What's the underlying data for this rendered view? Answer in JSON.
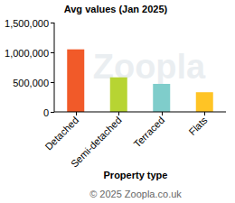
{
  "chart_data": {
    "type": "bar",
    "title": "Avg values (Jan 2025)",
    "x_label": "Property type",
    "source": "© 2025 Zoopla.co.uk",
    "watermark": "Zoopla",
    "categories": [
      "Detached",
      "Semi-detached",
      "Terraced",
      "Flats"
    ],
    "values": [
      1050000,
      580000,
      470000,
      330000
    ],
    "colors": [
      "#f15a29",
      "#b7d433",
      "#7fcdcb",
      "#ffc425"
    ],
    "ylim": [
      0,
      1500000
    ],
    "yticks": [
      0,
      {
        "value": 500000,
        "label": "500,000"
      },
      {
        "value": 1000000,
        "label": "1,000,000"
      },
      {
        "value": 1500000,
        "label": "1,500,000"
      }
    ],
    "grid": false
  }
}
